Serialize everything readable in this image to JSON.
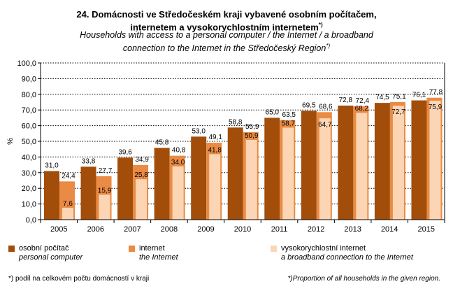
{
  "title": {
    "line1": "24. Domácnosti ve Středočeském  kraji vybavené osobním počítačem,",
    "line2": "internetem a vysokorychlostním  internetem",
    "line2_sup": "*)",
    "en1": "Households with access to a personal computer / the Internet / a broadband",
    "en2": "connection to the Internet in the Středočeský Region",
    "en2_sup": "*)"
  },
  "footnote": {
    "cz": "*) podíl na celkovém počtu domácností v kraji",
    "en": "*)Proportion of all households in the given region."
  },
  "chart_data": {
    "type": "bar",
    "ylabel": "%",
    "ylim": [
      0,
      100
    ],
    "yticks": [
      "0,0",
      "10,0",
      "20,0",
      "30,0",
      "40,0",
      "50,0",
      "60,0",
      "70,0",
      "80,0",
      "90,0",
      "100,0"
    ],
    "grid": true,
    "categories": [
      "2005",
      "2006",
      "2007",
      "2008",
      "2009",
      "2010",
      "2011",
      "2012",
      "2013",
      "2014",
      "2015"
    ],
    "series": [
      {
        "name": "osobní počítač",
        "name_en": "personal computer",
        "color": "#A34D0A",
        "values": [
          31.0,
          33.8,
          39.6,
          45.8,
          53.0,
          58.8,
          65.0,
          69.5,
          72.8,
          74.5,
          76.1
        ],
        "labels": [
          "31,0",
          "33,8",
          "39,6",
          "45,8",
          "53,0",
          "58,8",
          "65,0",
          "69,5",
          "72,8",
          "74,5",
          "76,1"
        ]
      },
      {
        "name": "internet",
        "name_en": "the Internet",
        "color": "#E98B44",
        "values": [
          24.4,
          27.7,
          34.9,
          40.8,
          49.1,
          55.9,
          63.5,
          68.6,
          72.4,
          75.1,
          77.8
        ],
        "labels": [
          "24,4",
          "27,7",
          "34,9",
          "40,8",
          "49,1",
          "55,9",
          "63,5",
          "68,6",
          "72,4",
          "75,1",
          "77,8"
        ]
      },
      {
        "name": "vysokorychlostní internet",
        "name_en": "a broadband connection to the Internet",
        "color": "#FCD5B4",
        "values": [
          7.6,
          15.9,
          25.8,
          34.0,
          41.8,
          50.9,
          58.7,
          64.7,
          68.2,
          72.7,
          75.9
        ],
        "labels": [
          "7,6",
          "15,9",
          "25,8",
          "34,0",
          "41,8",
          "50,9",
          "58,7",
          "64,7",
          "68,2",
          "72,7",
          "75,9"
        ]
      }
    ],
    "legend": "bottom"
  }
}
